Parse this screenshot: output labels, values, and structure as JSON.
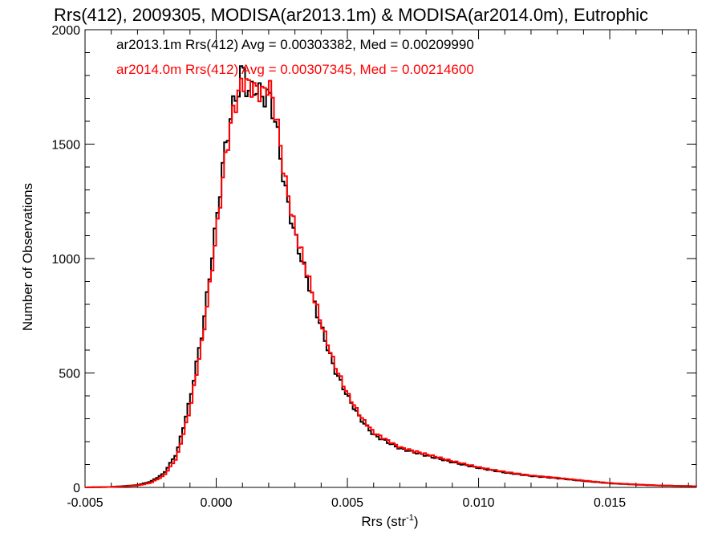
{
  "chart_data": {
    "type": "line",
    "title": "Rrs(412), 2009305, MODISA(ar2013.1m) & MODISA(ar2014.0m), Eutrophic",
    "xlabel": "Rrs (str",
    "xlabel_sup": "-1",
    "xlabel_close": ")",
    "ylabel": "Number of Observations",
    "xlim": [
      -0.005,
      0.0183
    ],
    "ylim": [
      0,
      2000
    ],
    "x_ticks": [
      -0.005,
      0.0,
      0.005,
      0.01,
      0.015
    ],
    "x_tick_labels": [
      "-0.005",
      "0.000",
      "0.005",
      "0.010",
      "0.015"
    ],
    "y_ticks": [
      0,
      500,
      1000,
      1500,
      2000
    ],
    "y_tick_labels": [
      "0",
      "500",
      "1000",
      "1500",
      "2000"
    ],
    "legend_placement": "top-left",
    "series": [
      {
        "name": "ar2013.1m",
        "legend": "ar2013.1m Rrs(412) Avg = 0.00303382, Med = 0.00209990",
        "color": "#000000",
        "x": [
          -0.005,
          -0.004,
          -0.003,
          -0.0025,
          -0.002,
          -0.0015,
          -0.001,
          -0.0005,
          0.0,
          0.0003,
          0.0006,
          0.0009,
          0.001,
          0.0012,
          0.0015,
          0.0018,
          0.002,
          0.0023,
          0.0026,
          0.003,
          0.0035,
          0.004,
          0.0045,
          0.005,
          0.0055,
          0.006,
          0.007,
          0.008,
          0.009,
          0.01,
          0.011,
          0.012,
          0.013,
          0.014,
          0.015,
          0.016,
          0.017,
          0.0183
        ],
        "y": [
          0,
          2,
          10,
          25,
          60,
          150,
          380,
          700,
          1150,
          1450,
          1650,
          1760,
          1850,
          1720,
          1750,
          1700,
          1720,
          1580,
          1320,
          1100,
          900,
          700,
          520,
          400,
          300,
          230,
          170,
          140,
          110,
          85,
          65,
          50,
          40,
          28,
          18,
          12,
          8,
          5
        ]
      },
      {
        "name": "ar2014.0m",
        "legend": "ar2014.0m Rrs(412) Avg = 0.00307345, Med = 0.00214600",
        "color": "#ff0000",
        "x": [
          -0.005,
          -0.004,
          -0.003,
          -0.0025,
          -0.002,
          -0.0015,
          -0.001,
          -0.0005,
          0.0,
          0.0003,
          0.0006,
          0.0009,
          0.001,
          0.0012,
          0.0015,
          0.0018,
          0.002,
          0.0023,
          0.0026,
          0.003,
          0.0035,
          0.004,
          0.0045,
          0.005,
          0.0055,
          0.006,
          0.007,
          0.008,
          0.009,
          0.01,
          0.011,
          0.012,
          0.013,
          0.014,
          0.015,
          0.016,
          0.017,
          0.0183
        ],
        "y": [
          0,
          2,
          8,
          20,
          50,
          130,
          340,
          660,
          1100,
          1400,
          1620,
          1740,
          1780,
          1760,
          1740,
          1720,
          1770,
          1620,
          1360,
          1130,
          920,
          720,
          540,
          410,
          310,
          240,
          175,
          145,
          115,
          88,
          68,
          52,
          42,
          30,
          19,
          13,
          8,
          5
        ]
      }
    ]
  }
}
